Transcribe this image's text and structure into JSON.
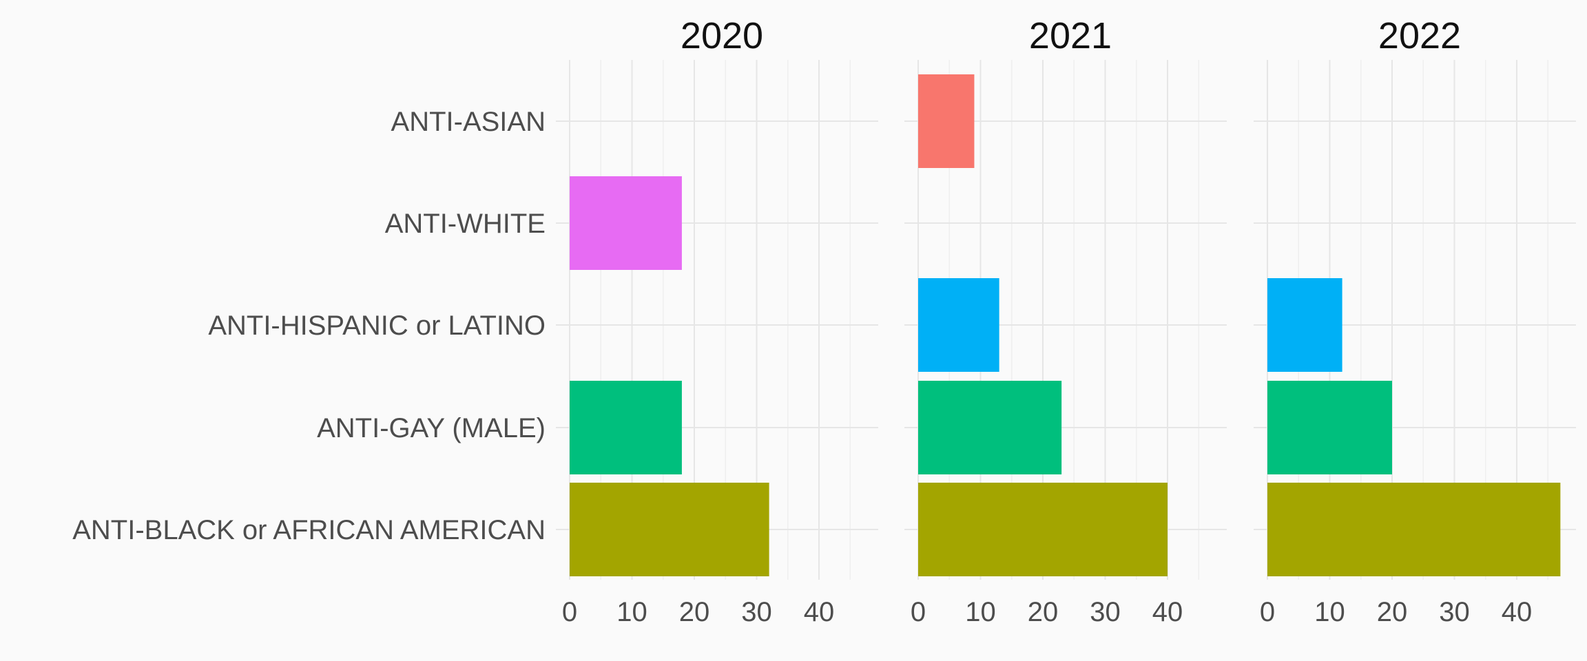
{
  "chart_data": {
    "type": "bar",
    "orientation": "horizontal",
    "facets": [
      "2020",
      "2021",
      "2022"
    ],
    "categories": [
      "ANTI-ASIAN",
      "ANTI-WHITE",
      "ANTI-HISPANIC or LATINO",
      "ANTI-GAY (MALE)",
      "ANTI-BLACK or AFRICAN AMERICAN"
    ],
    "series": [
      {
        "facet": "2020",
        "values": [
          null,
          18,
          null,
          18,
          32
        ]
      },
      {
        "facet": "2021",
        "values": [
          9,
          null,
          13,
          23,
          40
        ]
      },
      {
        "facet": "2022",
        "values": [
          null,
          null,
          12,
          20,
          47
        ]
      }
    ],
    "category_colors": {
      "ANTI-ASIAN": "#F8766D",
      "ANTI-WHITE": "#E76BF3",
      "ANTI-HISPANIC or LATINO": "#00B0F6",
      "ANTI-GAY (MALE)": "#00BF7D",
      "ANTI-BLACK or AFRICAN AMERICAN": "#A3A500"
    },
    "x_ticks": [
      "0",
      "10",
      "20",
      "30",
      "40"
    ],
    "xlim": [
      0,
      49.5
    ],
    "grid": true,
    "legend": "none",
    "xlabel": "",
    "ylabel": "",
    "background": "#fafafa"
  }
}
